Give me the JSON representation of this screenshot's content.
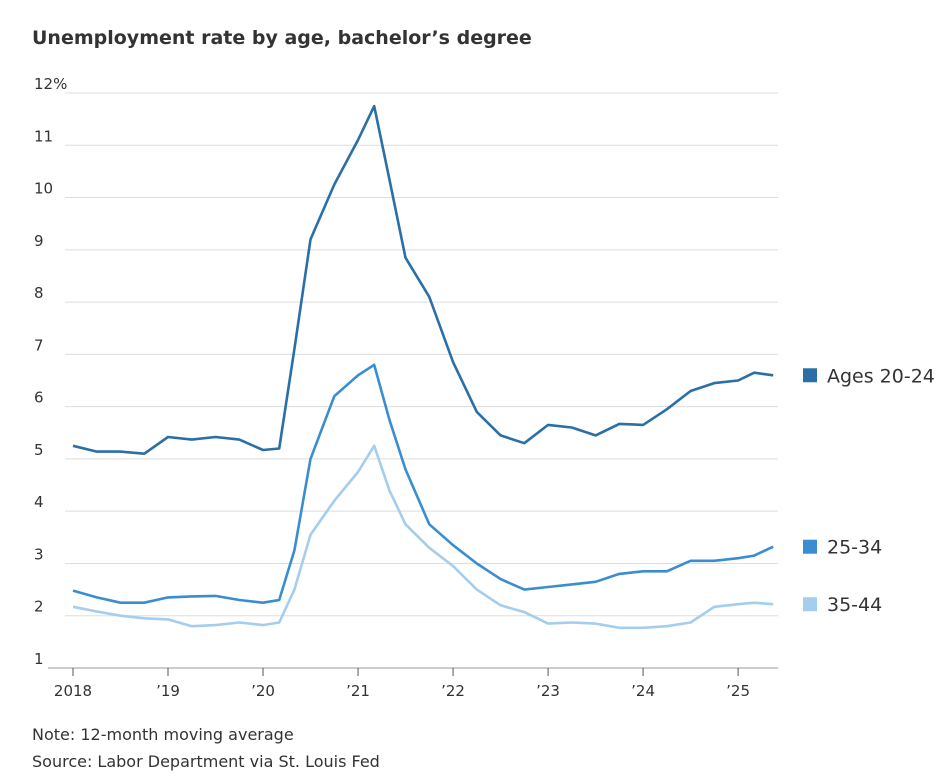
{
  "chart_data": {
    "type": "line",
    "title": "Unemployment rate by age, bachelor’s degree",
    "note": "Note: 12-month moving average",
    "source": "Source: Labor Department via St. Louis Fed",
    "x": [
      2018.0,
      2018.25,
      2018.5,
      2018.75,
      2019.0,
      2019.25,
      2019.5,
      2019.75,
      2020.0,
      2020.17,
      2020.33,
      2020.5,
      2020.75,
      2021.0,
      2021.17,
      2021.33,
      2021.5,
      2021.75,
      2022.0,
      2022.25,
      2022.5,
      2022.75,
      2023.0,
      2023.25,
      2023.5,
      2023.75,
      2024.0,
      2024.25,
      2024.5,
      2024.75,
      2025.0,
      2025.17,
      2025.37
    ],
    "series": [
      {
        "name": "Ages 20-24",
        "color": "#2a6fa6",
        "values": [
          5.25,
          5.14,
          5.14,
          5.1,
          5.42,
          5.37,
          5.42,
          5.37,
          5.17,
          5.2,
          7.1,
          9.2,
          10.25,
          11.1,
          11.75,
          10.35,
          8.85,
          8.1,
          6.85,
          5.9,
          5.45,
          5.3,
          5.65,
          5.6,
          5.45,
          5.67,
          5.65,
          5.95,
          6.3,
          6.45,
          6.5,
          6.65,
          6.6
        ]
      },
      {
        "name": "25-34",
        "color": "#3a8dd0",
        "values": [
          2.48,
          2.35,
          2.25,
          2.25,
          2.35,
          2.37,
          2.38,
          2.3,
          2.25,
          2.3,
          3.25,
          5.0,
          6.2,
          6.6,
          6.8,
          5.75,
          4.8,
          3.75,
          3.35,
          3.0,
          2.7,
          2.5,
          2.55,
          2.6,
          2.65,
          2.8,
          2.85,
          2.85,
          3.05,
          3.05,
          3.1,
          3.15,
          3.32
        ]
      },
      {
        "name": "35-44",
        "color": "#a5cdee",
        "values": [
          2.17,
          2.08,
          2.0,
          1.95,
          1.93,
          1.8,
          1.82,
          1.87,
          1.82,
          1.87,
          2.5,
          3.55,
          4.2,
          4.75,
          5.25,
          4.4,
          3.75,
          3.3,
          2.95,
          2.5,
          2.2,
          2.07,
          1.85,
          1.87,
          1.85,
          1.77,
          1.77,
          1.8,
          1.87,
          2.17,
          2.22,
          2.25,
          2.22
        ]
      }
    ],
    "xlim": [
      2018,
      2025.42
    ],
    "xticks": [
      2018,
      {
        "value": 2019,
        "label": "’19"
      },
      {
        "value": 2020,
        "label": "’20"
      },
      {
        "value": 2021,
        "label": "’21"
      },
      {
        "value": 2022,
        "label": "’22"
      },
      {
        "value": 2023,
        "label": "’23"
      },
      {
        "value": 2024,
        "label": "’24"
      },
      {
        "value": 2025,
        "label": "’25"
      }
    ],
    "ylim": [
      1,
      12
    ],
    "yticks": [
      1,
      2,
      3,
      4,
      5,
      6,
      7,
      8,
      9,
      10,
      11,
      {
        "value": 12,
        "label": "12%"
      }
    ],
    "grid": true
  }
}
